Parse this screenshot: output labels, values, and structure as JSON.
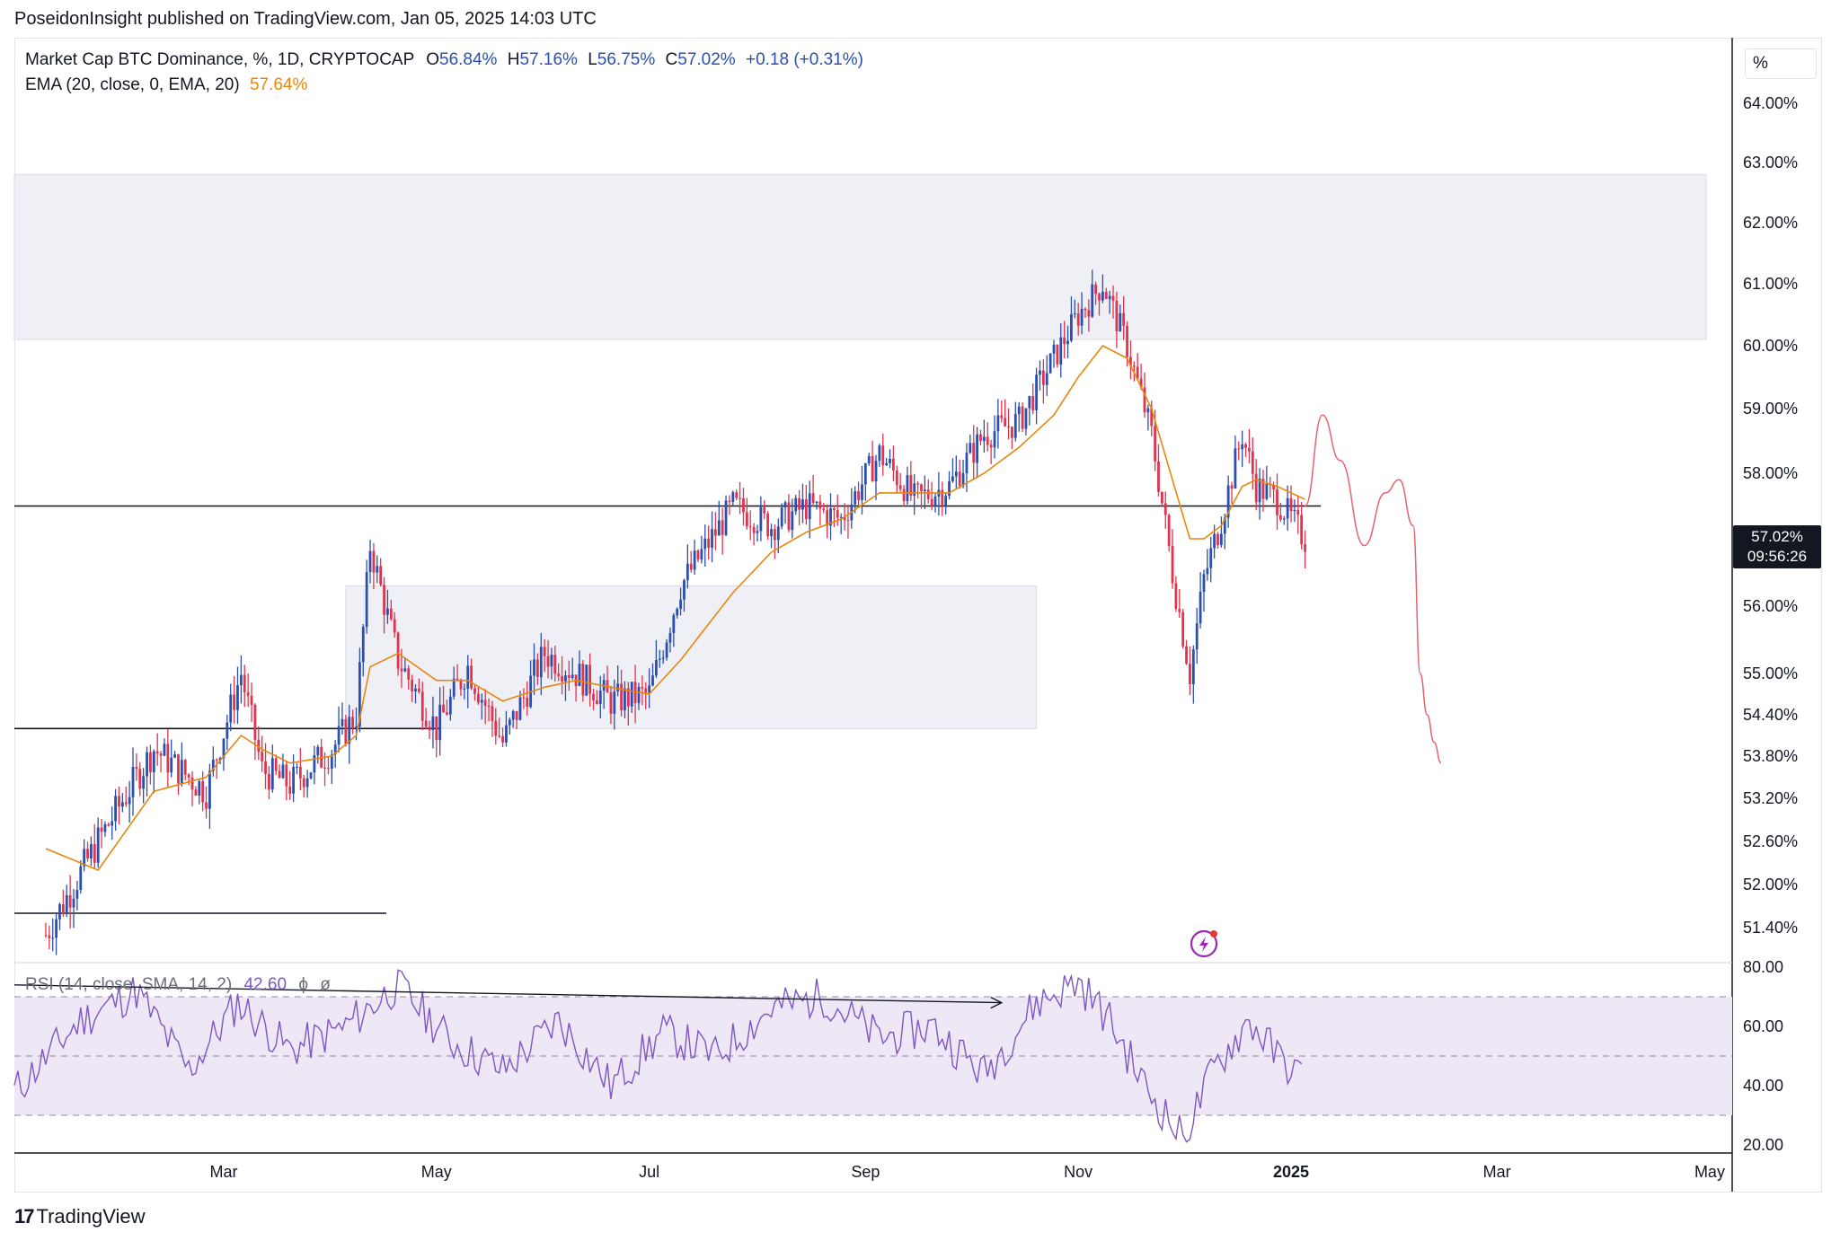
{
  "publish_line": "PoseidonInsight published on TradingView.com, Jan 05, 2025 14:03 UTC",
  "legend": {
    "symbol": "Market Cap BTC Dominance, %, 1D, CRYPTOCAP",
    "o_label": "O",
    "o_value": "56.84%",
    "h_label": "H",
    "h_value": "57.16%",
    "l_label": "L",
    "l_value": "56.75%",
    "c_label": "C",
    "c_value": "57.02%",
    "change": "+0.18 (+0.31%)",
    "ema_label": "EMA (20, close, 0, EMA, 20)",
    "ema_value": "57.64%"
  },
  "rsi_legend": {
    "label": "RSI (14, close, SMA, 14, 2)",
    "value": "42.60",
    "extra1": "ϕ",
    "extra2": "ø"
  },
  "currency_button": "%",
  "price_tag": {
    "price": "57.02%",
    "countdown": "09:56:26"
  },
  "branding": {
    "mark": "17",
    "name": "TradingView"
  },
  "colors": {
    "up": "#2a4fb0",
    "down": "#e0344e",
    "ema": "#e8860c",
    "rsi": "#7e57c2",
    "rsi_band": "#ede7f6",
    "zone": "#eef0f5",
    "projection": "#e5636f"
  },
  "chart_data": [
    {
      "type": "line",
      "title": "Market Cap BTC Dominance, %, 1D, CRYPTOCAP",
      "y_unit": "%",
      "y_ticks": [
        "64.00%",
        "63.00%",
        "62.00%",
        "61.00%",
        "60.00%",
        "59.00%",
        "58.00%",
        "56.00%",
        "55.00%",
        "54.40%",
        "53.80%",
        "53.20%",
        "52.60%",
        "52.00%",
        "51.40%"
      ],
      "x_ticks": [
        "Mar",
        "May",
        "Jul",
        "Sep",
        "Nov",
        "2025",
        "Mar",
        "May"
      ],
      "x": [
        "2024-01-10",
        "2024-01-25",
        "2024-02-10",
        "2024-02-25",
        "2024-03-06",
        "2024-03-12",
        "2024-03-20",
        "2024-04-01",
        "2024-04-08",
        "2024-04-12",
        "2024-04-20",
        "2024-05-01",
        "2024-05-10",
        "2024-05-20",
        "2024-06-01",
        "2024-06-10",
        "2024-06-20",
        "2024-07-01",
        "2024-07-10",
        "2024-07-25",
        "2024-08-05",
        "2024-08-15",
        "2024-08-25",
        "2024-09-05",
        "2024-09-15",
        "2024-09-25",
        "2024-10-05",
        "2024-10-15",
        "2024-10-25",
        "2024-11-01",
        "2024-11-08",
        "2024-11-15",
        "2024-11-22",
        "2024-11-28",
        "2024-12-03",
        "2024-12-07",
        "2024-12-12",
        "2024-12-18",
        "2024-12-22",
        "2024-12-28",
        "2025-01-05"
      ],
      "series": [
        {
          "name": "Market Cap BTC Dominance",
          "values": [
            51.3,
            52.6,
            53.9,
            53.3,
            55.0,
            53.6,
            53.4,
            53.9,
            54.4,
            56.9,
            55.2,
            54.2,
            55.1,
            54.0,
            55.3,
            55.0,
            54.6,
            54.7,
            56.3,
            57.5,
            57.2,
            57.5,
            57.3,
            58.3,
            57.6,
            57.8,
            58.6,
            58.8,
            59.8,
            60.5,
            61.0,
            60.0,
            58.6,
            56.5,
            55.0,
            56.4,
            57.3,
            58.6,
            57.8,
            57.6,
            57.0
          ]
        },
        {
          "name": "EMA (20, close, 0, EMA, 20)",
          "values": [
            52.5,
            52.2,
            53.3,
            53.5,
            54.1,
            53.9,
            53.7,
            53.8,
            54.1,
            55.1,
            55.3,
            54.9,
            54.9,
            54.6,
            54.8,
            54.9,
            54.8,
            54.7,
            55.2,
            56.2,
            56.8,
            57.1,
            57.3,
            57.7,
            57.7,
            57.7,
            58.0,
            58.4,
            58.9,
            59.5,
            60.0,
            59.8,
            59.0,
            57.9,
            57.0,
            57.0,
            57.2,
            57.8,
            57.9,
            57.8,
            57.6
          ]
        }
      ],
      "horizontal_levels": [
        57.5,
        54.2,
        51.6
      ],
      "zones": [
        {
          "y_range": [
            60.1,
            62.8
          ],
          "x_range": [
            "2024-01-01",
            "2025-04-30"
          ]
        },
        {
          "y_range": [
            54.2,
            56.3
          ],
          "x_range": [
            "2024-04-05",
            "2024-10-20"
          ]
        }
      ],
      "projection_path": {
        "x": [
          "2025-01-05",
          "2025-01-10",
          "2025-01-15",
          "2025-01-22",
          "2025-01-28",
          "2025-02-01",
          "2025-02-05",
          "2025-02-07",
          "2025-02-09",
          "2025-02-11",
          "2025-02-13"
        ],
        "y": [
          57.5,
          58.9,
          58.2,
          56.9,
          57.7,
          57.9,
          57.2,
          55.0,
          54.4,
          54.0,
          53.7
        ]
      }
    },
    {
      "type": "line",
      "title": "RSI (14, close, SMA, 14, 2)",
      "y_ticks": [
        "80.00",
        "60.00",
        "40.00",
        "20.00"
      ],
      "band": [
        30,
        70
      ],
      "midline": 50,
      "x": [
        "2024-01-01",
        "2024-01-20",
        "2024-02-05",
        "2024-02-20",
        "2024-03-05",
        "2024-03-20",
        "2024-04-05",
        "2024-04-20",
        "2024-05-05",
        "2024-05-20",
        "2024-06-05",
        "2024-06-20",
        "2024-07-05",
        "2024-07-20",
        "2024-08-05",
        "2024-08-20",
        "2024-09-05",
        "2024-09-20",
        "2024-10-05",
        "2024-10-20",
        "2024-11-01",
        "2024-11-10",
        "2024-11-20",
        "2024-12-01",
        "2024-12-10",
        "2024-12-20",
        "2024-12-28",
        "2025-01-05"
      ],
      "series": [
        {
          "name": "RSI",
          "values": [
            38,
            62,
            72,
            45,
            68,
            52,
            60,
            74,
            55,
            45,
            62,
            40,
            58,
            50,
            66,
            70,
            56,
            60,
            44,
            68,
            75,
            62,
            40,
            22,
            46,
            62,
            50,
            42
          ]
        }
      ],
      "divergence_line": {
        "x": [
          "2024-01-01",
          "2024-10-10"
        ],
        "y": [
          74,
          68
        ]
      }
    }
  ]
}
